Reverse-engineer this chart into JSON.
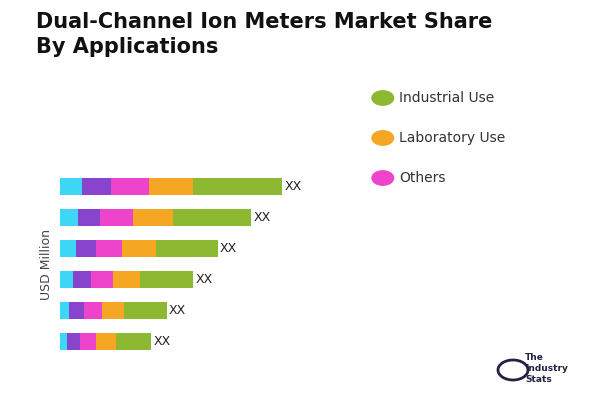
{
  "title": "Dual-Channel Ion Meters Market Share\nBy Applications",
  "ylabel": "USD Million",
  "legend_labels": [
    "Industrial Use",
    "Laboratory Use",
    "Others"
  ],
  "legend_colors": [
    "#8db832",
    "#f5a623",
    "#ee44cc"
  ],
  "bar_colors": [
    "#3dd6f5",
    "#8844cc",
    "#ee44cc",
    "#f5a623",
    "#8db832"
  ],
  "segment_names": [
    "Cyan",
    "Purple",
    "Magenta",
    "Orange",
    "Green"
  ],
  "rows": [
    [
      0.1,
      0.13,
      0.17,
      0.2,
      0.4
    ],
    [
      0.08,
      0.1,
      0.15,
      0.18,
      0.35
    ],
    [
      0.07,
      0.09,
      0.12,
      0.15,
      0.28
    ],
    [
      0.06,
      0.08,
      0.1,
      0.12,
      0.24
    ],
    [
      0.04,
      0.07,
      0.08,
      0.1,
      0.19
    ],
    [
      0.03,
      0.06,
      0.07,
      0.09,
      0.16
    ]
  ],
  "bar_label": "XX",
  "background_color": "#ffffff",
  "title_fontsize": 15,
  "legend_fontsize": 10,
  "ylabel_fontsize": 9,
  "bar_height": 0.55,
  "logo_text": "The\nIndustry\nStats"
}
